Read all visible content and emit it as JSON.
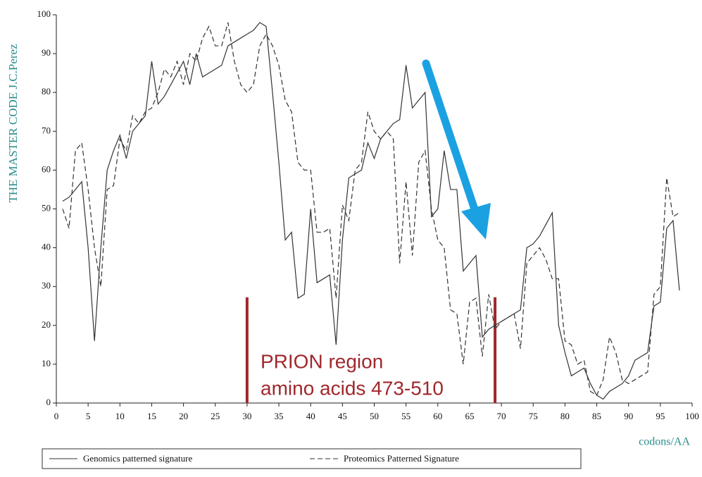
{
  "chart_data": {
    "type": "line",
    "ylabel": "THE MASTER CODE J.C.Perez",
    "xlabel": "codons/AA",
    "annotations": [
      "PRION region",
      "amino acids 473-510"
    ],
    "region": [
      30,
      69
    ],
    "x": [
      1,
      2,
      3,
      4,
      5,
      6,
      7,
      8,
      9,
      10,
      11,
      12,
      13,
      14,
      15,
      16,
      17,
      18,
      19,
      20,
      21,
      22,
      23,
      24,
      25,
      26,
      27,
      28,
      29,
      30,
      31,
      32,
      33,
      34,
      35,
      36,
      37,
      38,
      39,
      40,
      41,
      42,
      43,
      44,
      45,
      46,
      47,
      48,
      49,
      50,
      51,
      52,
      53,
      54,
      55,
      56,
      57,
      58,
      59,
      60,
      61,
      62,
      63,
      64,
      65,
      66,
      67,
      68,
      69,
      70,
      71,
      72,
      73,
      74,
      75,
      76,
      77,
      78,
      79,
      80,
      81,
      82,
      83,
      84,
      85,
      86,
      87,
      88,
      89,
      90,
      91,
      92,
      93,
      94,
      95,
      96,
      97,
      98
    ],
    "series": [
      {
        "name": "Genomics patterned signature",
        "color": "#333333",
        "style": "solid",
        "values": [
          52,
          53,
          55,
          57,
          40,
          16,
          40,
          60,
          65,
          69,
          63,
          70,
          72,
          74,
          88,
          77,
          79,
          82,
          85,
          88,
          82,
          90,
          84,
          85,
          86,
          87,
          92,
          93,
          94,
          95,
          96,
          98,
          97,
          80,
          62,
          42,
          44,
          27,
          28,
          50,
          31,
          32,
          33,
          15,
          42,
          58,
          59,
          60,
          67,
          63,
          68,
          70,
          72,
          73,
          87,
          76,
          78,
          80,
          48,
          50,
          65,
          55,
          55,
          34,
          36,
          38,
          17,
          19,
          20,
          21,
          22,
          23,
          24,
          40,
          41,
          43,
          46,
          49,
          20,
          13,
          7,
          8,
          9,
          5,
          2,
          1,
          3,
          4,
          5,
          7,
          11,
          12,
          13,
          25,
          26,
          45,
          47,
          29
        ]
      },
      {
        "name": "Proteomics Patterned Signature",
        "color": "#333333",
        "style": "dashed",
        "values": [
          50,
          45,
          65,
          67,
          55,
          40,
          30,
          55,
          56,
          68,
          65,
          74,
          72,
          75,
          76,
          80,
          86,
          84,
          88,
          82,
          90,
          88,
          94,
          97,
          92,
          92,
          98,
          88,
          82,
          80,
          82,
          92,
          95,
          92,
          87,
          78,
          75,
          62,
          60,
          60,
          44,
          44,
          45,
          27,
          51,
          47,
          60,
          62,
          75,
          70,
          68,
          70,
          68,
          36,
          57,
          38,
          62,
          65,
          50,
          42,
          40,
          24,
          23,
          10,
          26,
          27,
          12,
          28,
          19,
          21,
          22,
          23,
          14,
          36,
          38,
          40,
          37,
          32,
          32,
          16,
          15,
          10,
          11,
          3,
          2,
          6,
          17,
          13,
          6,
          5,
          6,
          7,
          8,
          28,
          30,
          58,
          48,
          49
        ]
      }
    ],
    "xlim": [
      0,
      100
    ],
    "xticks": [
      0,
      5,
      10,
      15,
      20,
      25,
      30,
      35,
      40,
      45,
      50,
      55,
      60,
      65,
      70,
      75,
      80,
      85,
      90,
      95,
      100
    ],
    "ylim": [
      0,
      100
    ],
    "yticks": [
      0,
      10,
      20,
      30,
      40,
      50,
      60,
      70,
      80,
      90,
      100
    ]
  }
}
